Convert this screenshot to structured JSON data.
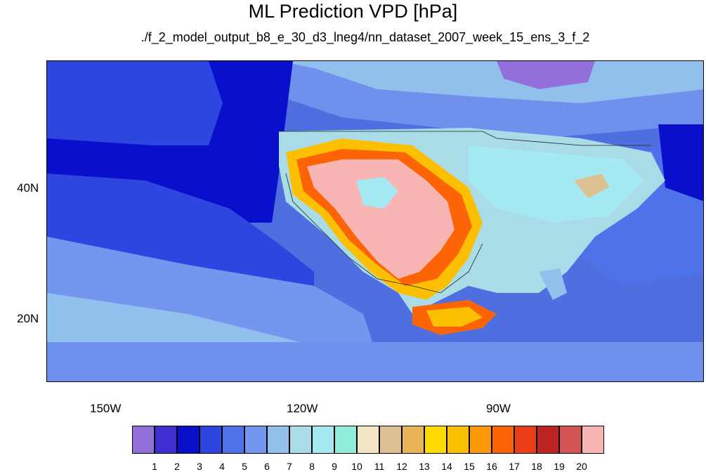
{
  "title": "ML Prediction VPD [hPa]",
  "subtitle": "./f_2_model_output_b8_e_30_d3_lneg4/nn_dataset_2007_week_15_ens_3_f_2",
  "axes": {
    "lat_labels": [
      "40N",
      "20N"
    ],
    "lon_labels": [
      "150W",
      "120W",
      "90W"
    ]
  },
  "colorbar": {
    "labels": [
      "1",
      "2",
      "3",
      "4",
      "5",
      "6",
      "7",
      "8",
      "9",
      "10",
      "11",
      "12",
      "13",
      "14",
      "15",
      "16",
      "17",
      "18",
      "19",
      "20"
    ],
    "colors": [
      "#9370db",
      "#3f2fd0",
      "#0a0fcc",
      "#2d46e0",
      "#4e72e9",
      "#7496ee",
      "#92c0ec",
      "#a9dce6",
      "#a5e9f2",
      "#90ecd8",
      "#f3e4c4",
      "#ddc092",
      "#e8b455",
      "#fcda02",
      "#fdbf02",
      "#fd9a0a",
      "#fc6406",
      "#ea3c16",
      "#bc2424",
      "#d45454",
      "#f9b4b4"
    ]
  }
}
